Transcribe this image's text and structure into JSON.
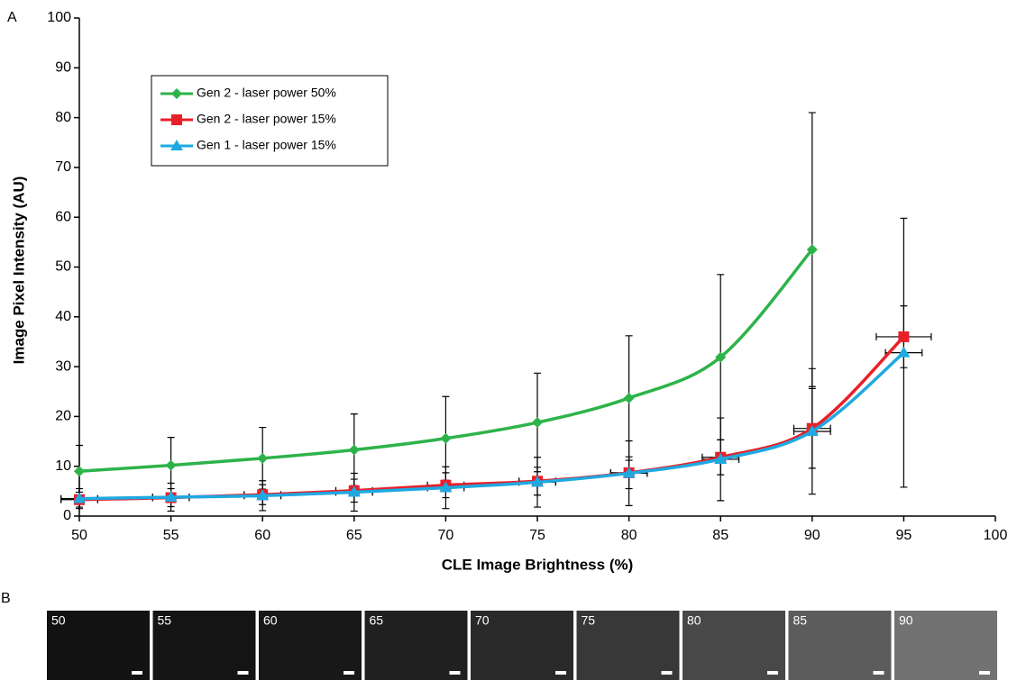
{
  "chart_data": {
    "type": "line",
    "panel_label": "A",
    "xlabel": "CLE Image Brightness (%)",
    "ylabel": "Image Pixel Intensity (AU)",
    "x": [
      50,
      55,
      60,
      65,
      70,
      75,
      80,
      85,
      90,
      95
    ],
    "series": [
      {
        "name": "Gen 2 - laser power 50%",
        "color": "#2db34a",
        "marker": "diamond",
        "values": [
          9.0,
          10.2,
          11.6,
          13.3,
          15.6,
          18.8,
          23.7,
          31.9,
          53.5,
          null
        ],
        "yerr": [
          5.2,
          5.6,
          6.2,
          7.2,
          8.4,
          9.9,
          12.5,
          16.6,
          27.5,
          null
        ]
      },
      {
        "name": "Gen 2 - laser power 15%",
        "color": "#e8202a",
        "marker": "square",
        "values": [
          3.3,
          3.7,
          4.3,
          5.1,
          6.2,
          7.0,
          8.7,
          11.8,
          17.6,
          36.0
        ],
        "yerr": [
          1.5,
          1.8,
          2.0,
          2.3,
          2.5,
          2.8,
          3.2,
          3.5,
          8.0,
          6.2
        ],
        "xerr": [
          1.0,
          1.0,
          1.0,
          1.0,
          1.0,
          1.0,
          1.0,
          1.0,
          1.0,
          1.5
        ]
      },
      {
        "name": "Gen 1 - laser power 15%",
        "color": "#1fa9e1",
        "marker": "triangle",
        "values": [
          3.5,
          3.8,
          4.1,
          4.8,
          5.7,
          6.8,
          8.6,
          11.4,
          17.0,
          32.8
        ],
        "yerr": [
          2.0,
          2.8,
          3.0,
          3.8,
          4.2,
          5.0,
          6.5,
          8.3,
          12.6,
          27.0
        ],
        "xerr": [
          1.0,
          1.0,
          1.0,
          1.0,
          1.0,
          1.0,
          1.0,
          1.0,
          1.0,
          1.0
        ]
      }
    ],
    "xlim": [
      50,
      100
    ],
    "xticks": [
      50,
      55,
      60,
      65,
      70,
      75,
      80,
      85,
      90,
      95,
      100
    ],
    "ylim": [
      0,
      100
    ],
    "yticks": [
      0,
      10,
      20,
      30,
      40,
      50,
      60,
      70,
      80,
      90,
      100
    ],
    "legend": "upper left",
    "grid": false
  },
  "panel_b": {
    "panel_label": "B",
    "labels": [
      "50",
      "55",
      "60",
      "65",
      "70",
      "75",
      "80",
      "85",
      "90"
    ]
  }
}
